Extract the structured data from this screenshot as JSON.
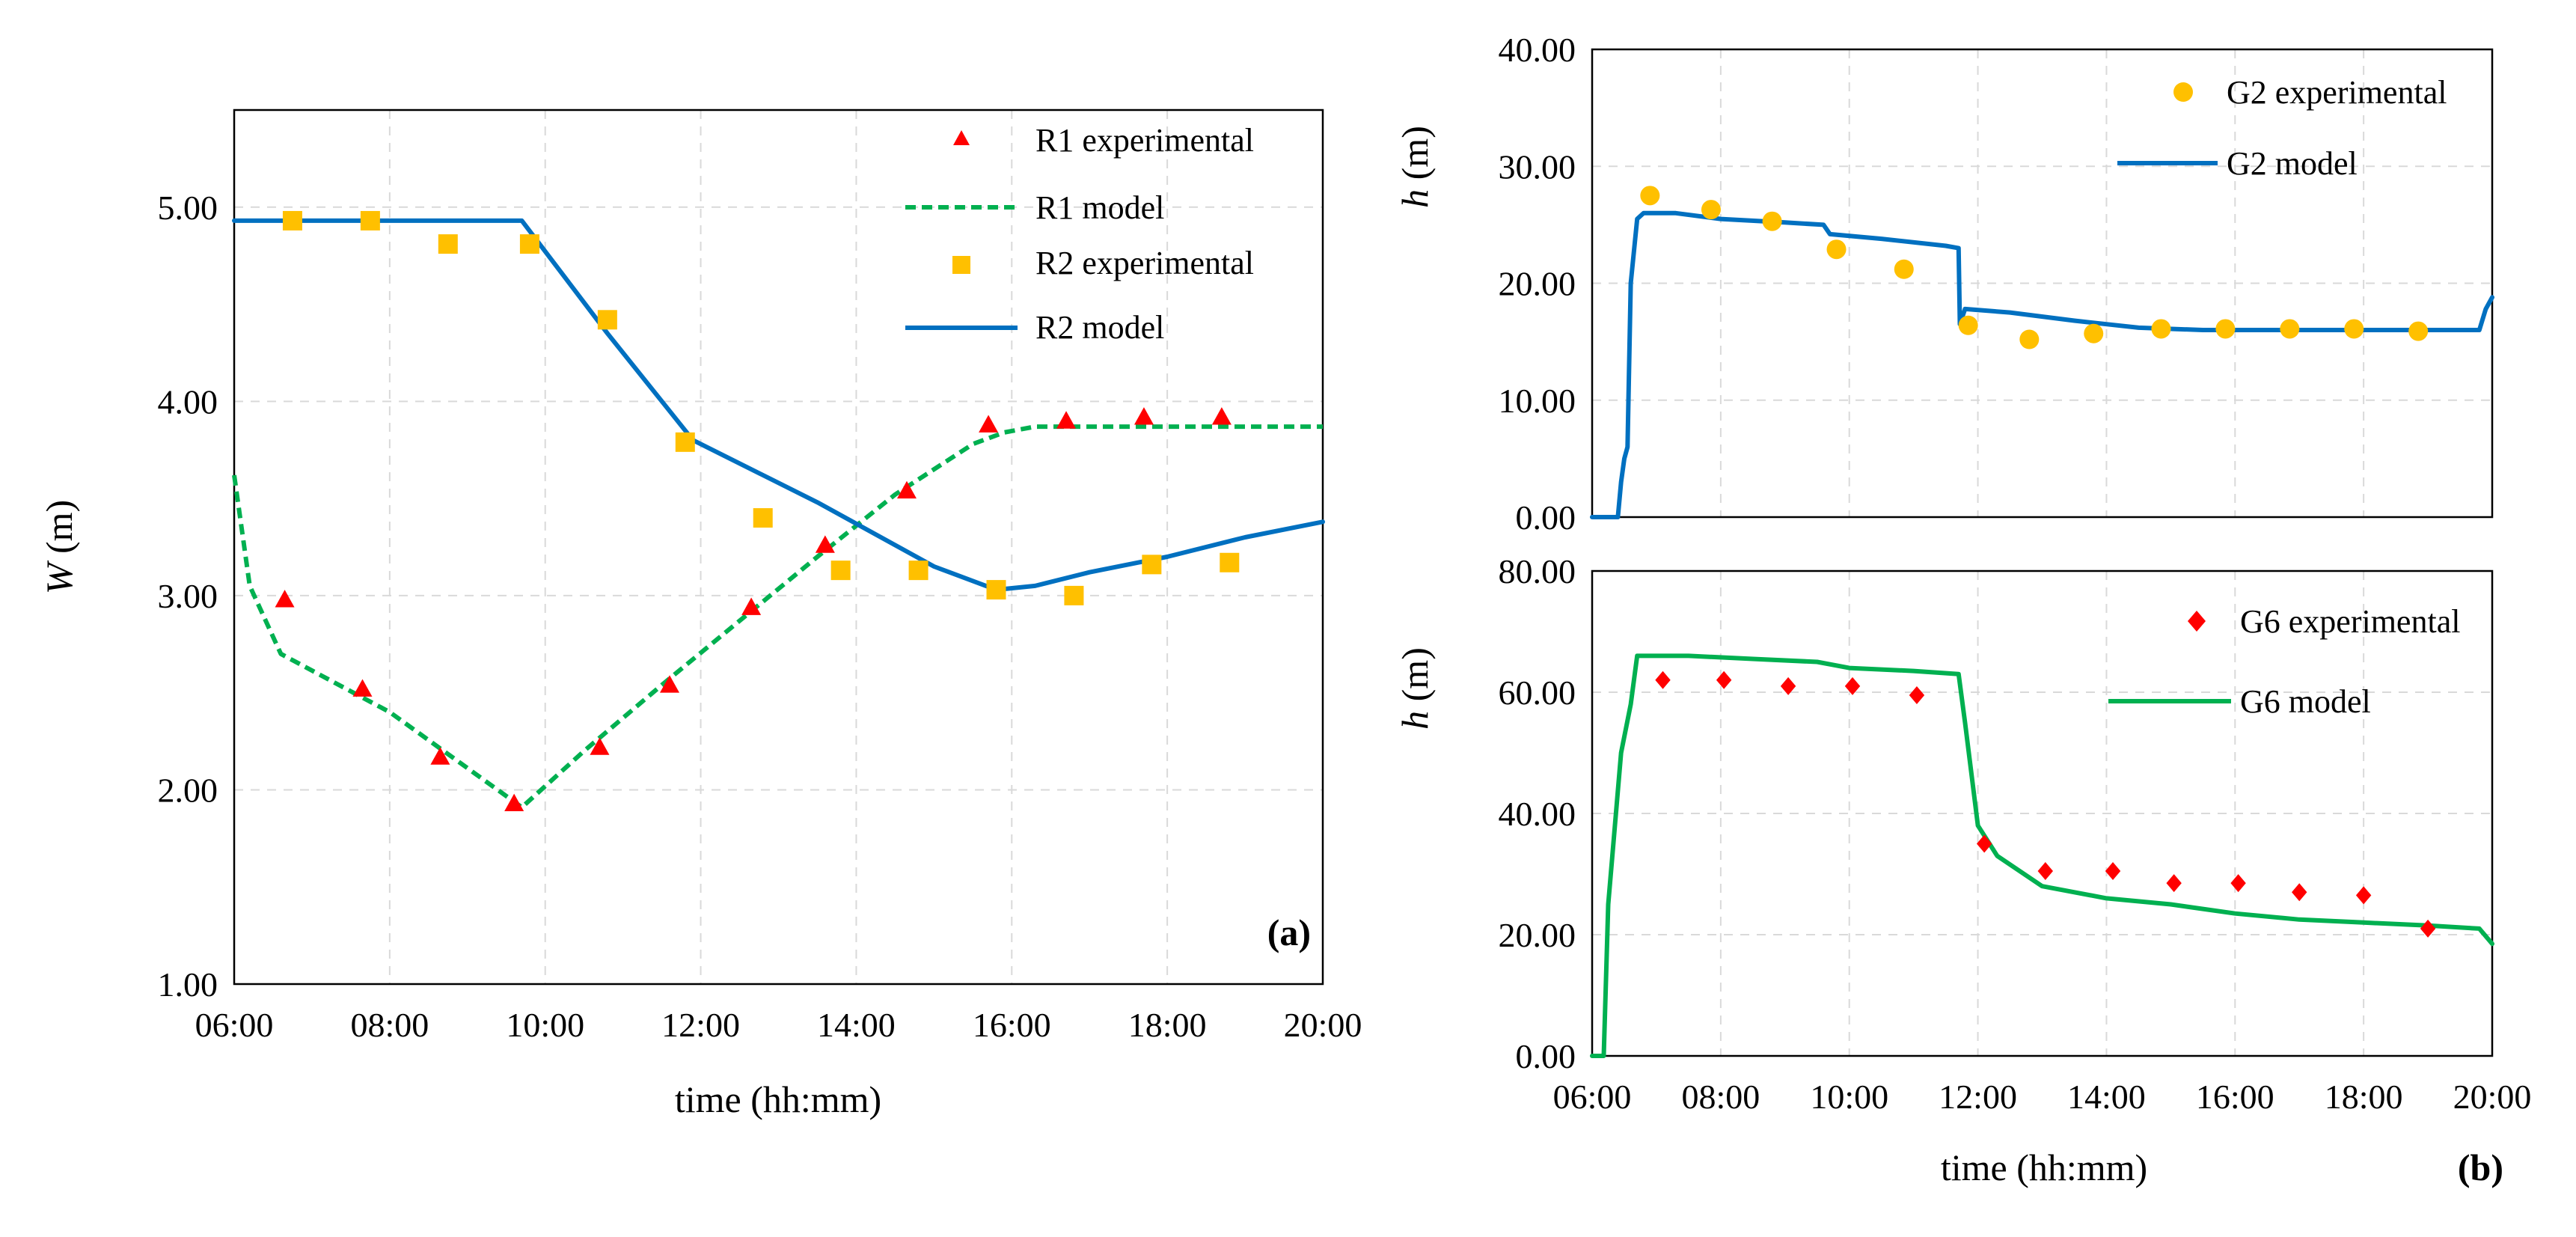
{
  "chart_data": [
    {
      "id": "a",
      "type": "line",
      "panel_label": "(a)",
      "xlabel": "time (hh:mm)",
      "ylabel_var": "W",
      "ylabel_unit": " (m)",
      "x_ticks": [
        "06:00",
        "08:00",
        "10:00",
        "12:00",
        "14:00",
        "16:00",
        "18:00",
        "20:00"
      ],
      "xlim": [
        6,
        20
      ],
      "ylim": [
        1,
        5.5
      ],
      "y_ticks": [
        "1.00",
        "2.00",
        "3.00",
        "4.00",
        "5.00"
      ],
      "y_tick_values": [
        1,
        2,
        3,
        4,
        5
      ],
      "legend_position": "top-right",
      "series": [
        {
          "name": "R1 experimental",
          "kind": "scatter",
          "marker": "triangle",
          "color": "#ff0000",
          "x": [
            6.65,
            7.65,
            8.65,
            9.6,
            10.7,
            11.6,
            12.65,
            13.6,
            14.65,
            15.7,
            16.7,
            17.7,
            18.7
          ],
          "y": [
            2.98,
            2.52,
            2.17,
            1.93,
            2.22,
            2.54,
            2.94,
            3.26,
            3.54,
            3.88,
            3.9,
            3.92,
            3.92
          ]
        },
        {
          "name": "R1 model",
          "kind": "line",
          "dash": "dashed",
          "color": "#00b050",
          "x": [
            6.0,
            6.2,
            6.6,
            8.0,
            9.7,
            10.5,
            11.5,
            12.5,
            13.5,
            14.5,
            15.5,
            15.9,
            16.3,
            17.0,
            20.0
          ],
          "y": [
            3.62,
            3.05,
            2.7,
            2.4,
            1.91,
            2.2,
            2.54,
            2.87,
            3.2,
            3.52,
            3.78,
            3.84,
            3.87,
            3.87,
            3.87
          ]
        },
        {
          "name": "R2 experimental",
          "kind": "scatter",
          "marker": "square",
          "color": "#ffc000",
          "x": [
            6.75,
            7.75,
            8.75,
            9.8,
            10.8,
            11.8,
            12.8,
            13.8,
            14.8,
            15.8,
            16.8,
            17.8,
            18.8
          ],
          "y": [
            4.93,
            4.93,
            4.81,
            4.81,
            4.42,
            3.79,
            3.4,
            3.13,
            3.13,
            3.03,
            3.0,
            3.16,
            3.17
          ]
        },
        {
          "name": "R2 model",
          "kind": "line",
          "dash": "solid",
          "color": "#0070c0",
          "x": [
            6.0,
            9.7,
            10.8,
            11.9,
            13.5,
            15.0,
            15.8,
            16.3,
            17.0,
            18.0,
            19.0,
            20.0
          ],
          "y": [
            4.93,
            4.93,
            4.35,
            3.8,
            3.48,
            3.15,
            3.03,
            3.05,
            3.12,
            3.2,
            3.3,
            3.38
          ]
        }
      ]
    },
    {
      "id": "b_top",
      "type": "line",
      "xlabel": "",
      "ylabel_var": "h",
      "ylabel_unit": " (m)",
      "xlim": [
        6,
        20
      ],
      "ylim": [
        0,
        40
      ],
      "y_ticks": [
        "0.00",
        "10.00",
        "20.00",
        "30.00",
        "40.00"
      ],
      "y_tick_values": [
        0,
        10,
        20,
        30,
        40
      ],
      "legend_position": "top-right",
      "series": [
        {
          "name": "G2 experimental",
          "kind": "scatter",
          "marker": "circle",
          "color": "#ffc000",
          "x": [
            6.9,
            7.85,
            8.8,
            9.8,
            10.85,
            11.85,
            12.8,
            13.8,
            14.85,
            15.85,
            16.85,
            17.85,
            18.85
          ],
          "y": [
            27.5,
            26.3,
            25.3,
            22.9,
            21.2,
            16.4,
            15.2,
            15.7,
            16.1,
            16.1,
            16.1,
            16.1,
            15.9
          ]
        },
        {
          "name": "G2 model",
          "kind": "line",
          "dash": "solid",
          "color": "#0070c0",
          "x": [
            6.0,
            6.4,
            6.45,
            6.5,
            6.55,
            6.6,
            6.7,
            6.8,
            7.3,
            8.0,
            9.0,
            9.6,
            9.7,
            10.5,
            11.5,
            11.7,
            11.72,
            11.8,
            12.5,
            13.5,
            14.0,
            14.5,
            15.5,
            16.5,
            19.8,
            19.9,
            20.0
          ],
          "y": [
            0,
            0,
            3,
            5,
            6,
            20,
            25.5,
            26,
            26,
            25.5,
            25.2,
            25.0,
            24.2,
            23.8,
            23.2,
            23.0,
            16.5,
            17.8,
            17.5,
            16.8,
            16.5,
            16.2,
            16.0,
            16.0,
            16.0,
            17.8,
            18.8
          ]
        }
      ]
    },
    {
      "id": "b_bottom",
      "type": "line",
      "panel_label": "(b)",
      "xlabel": "time (hh:mm)",
      "ylabel_var": "h",
      "ylabel_unit": " (m)",
      "x_ticks": [
        "06:00",
        "08:00",
        "10:00",
        "12:00",
        "14:00",
        "16:00",
        "18:00",
        "20:00"
      ],
      "xlim": [
        6,
        20
      ],
      "ylim": [
        0,
        80
      ],
      "y_ticks": [
        "0.00",
        "20.00",
        "40.00",
        "60.00",
        "80.00"
      ],
      "y_tick_values": [
        0,
        20,
        40,
        60,
        80
      ],
      "legend_position": "top-right",
      "series": [
        {
          "name": "G6 experimental",
          "kind": "scatter",
          "marker": "diamond",
          "color": "#ff0000",
          "x": [
            7.1,
            8.05,
            9.05,
            10.05,
            11.05,
            12.1,
            13.05,
            14.1,
            15.05,
            16.05,
            17.0,
            18.0,
            19.0
          ],
          "y": [
            62,
            62,
            61,
            61,
            59.5,
            35,
            30.5,
            30.5,
            28.5,
            28.5,
            27,
            26.5,
            21
          ]
        },
        {
          "name": "G6 model",
          "kind": "line",
          "dash": "solid",
          "color": "#00b050",
          "x": [
            6.0,
            6.18,
            6.25,
            6.45,
            6.6,
            6.7,
            7.5,
            8.5,
            9.5,
            10.0,
            11.0,
            11.7,
            11.8,
            12.0,
            12.3,
            13.0,
            14.0,
            15.0,
            16.0,
            17.0,
            18.0,
            19.0,
            19.8,
            20.0
          ],
          "y": [
            0,
            0,
            25,
            50,
            58,
            66,
            66,
            65.5,
            65,
            64,
            63.5,
            63,
            55,
            38,
            33,
            28,
            26,
            25,
            23.5,
            22.5,
            22,
            21.5,
            21,
            18.5
          ]
        }
      ]
    }
  ]
}
